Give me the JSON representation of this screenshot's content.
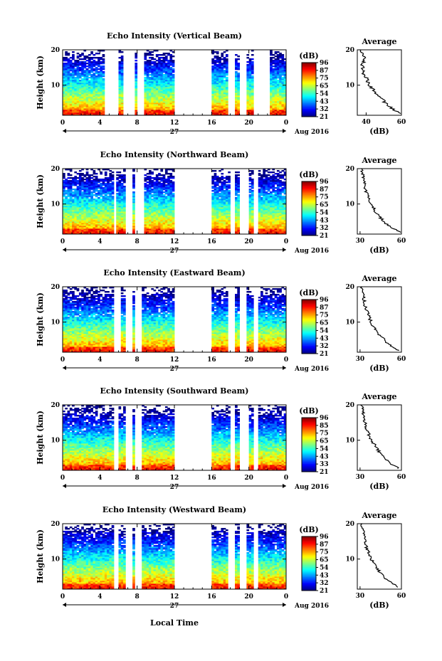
{
  "page": {
    "xlabel": "Local Time",
    "date_label": "Aug 2016",
    "day_label": "27",
    "colorbar_unit": "(dB)",
    "avg_title": "Average",
    "avg_xlabel": "(dB)"
  },
  "chart_data": [
    {
      "type": "heatmap",
      "title": "Echo Intensity (Vertical Beam)",
      "ylabel": "Height (km)",
      "xlabel": "Local Time",
      "x_ticks": [
        "0",
        "4",
        "8",
        "12",
        "16",
        "20",
        "0"
      ],
      "xlim": [
        0,
        24
      ],
      "y_ticks": [
        "10",
        "20"
      ],
      "ylim": [
        1.5,
        20
      ],
      "colorbar_ticks": [
        "96",
        "87",
        "75",
        "65",
        "54",
        "43",
        "32",
        "21"
      ],
      "colorbar_range": [
        21,
        96
      ],
      "data_gaps_hours": [
        [
          4.5,
          6.1
        ],
        [
          6.6,
          7.7
        ],
        [
          8.0,
          8.7
        ],
        [
          12,
          16.1
        ],
        [
          17.8,
          18.4
        ],
        [
          19.1,
          19.8
        ],
        [
          20.4,
          22.3
        ]
      ],
      "average": {
        "title": "Average",
        "xlabel": "(dB)",
        "x_ticks": [
          "40",
          "60"
        ],
        "xlim": [
          35,
          60
        ],
        "y_ticks": [
          "10",
          "20"
        ],
        "ylim": [
          1.5,
          20
        ],
        "height_km": [
          2,
          4,
          6,
          8,
          10,
          12,
          14,
          16,
          18,
          20
        ],
        "values_db": [
          59,
          53,
          49,
          45,
          42,
          40,
          38,
          38,
          39,
          36
        ]
      }
    },
    {
      "type": "heatmap",
      "title": "Echo Intensity (Northward Beam)",
      "ylabel": "Height (km)",
      "xlabel": "Local Time",
      "x_ticks": [
        "0",
        "4",
        "8",
        "12",
        "16",
        "20",
        "0"
      ],
      "xlim": [
        0,
        24
      ],
      "y_ticks": [
        "10",
        "20"
      ],
      "ylim": [
        1.5,
        20
      ],
      "colorbar_ticks": [
        "96",
        "87",
        "75",
        "65",
        "54",
        "43",
        "32",
        "21"
      ],
      "colorbar_range": [
        21,
        96
      ],
      "data_gaps_hours": [
        [
          5.5,
          5.8
        ],
        [
          6.7,
          7.6
        ],
        [
          7.8,
          8.7
        ],
        [
          12,
          16.1
        ],
        [
          17.9,
          18.5
        ],
        [
          19.0,
          19.9
        ],
        [
          20.4,
          21.0
        ]
      ],
      "average": {
        "title": "Average",
        "xlabel": "(dB)",
        "x_ticks": [
          "30",
          "60"
        ],
        "xlim": [
          28,
          60
        ],
        "y_ticks": [
          "10",
          "20"
        ],
        "ylim": [
          1.5,
          20
        ],
        "height_km": [
          2,
          4,
          6,
          8,
          10,
          12,
          14,
          16,
          18,
          20
        ],
        "values_db": [
          59,
          50,
          45,
          41,
          38,
          36,
          34,
          33,
          32,
          31
        ]
      }
    },
    {
      "type": "heatmap",
      "title": "Echo Intensity (Eastward Beam)",
      "ylabel": "Height (km)",
      "xlabel": "Local Time",
      "x_ticks": [
        "0",
        "4",
        "8",
        "12",
        "16",
        "20",
        "0"
      ],
      "xlim": [
        0,
        24
      ],
      "y_ticks": [
        "10",
        "20"
      ],
      "ylim": [
        1.5,
        20
      ],
      "colorbar_ticks": [
        "96",
        "87",
        "75",
        "65",
        "54",
        "43",
        "32",
        "21"
      ],
      "colorbar_range": [
        21,
        96
      ],
      "data_gaps_hours": [
        [
          5.5,
          6.2
        ],
        [
          6.7,
          7.5
        ],
        [
          7.8,
          8.6
        ],
        [
          12,
          16.1
        ],
        [
          17.8,
          18.6
        ],
        [
          19.0,
          19.7
        ],
        [
          20.4,
          21.0
        ]
      ],
      "average": {
        "title": "Average",
        "xlabel": "(dB)",
        "x_ticks": [
          "30",
          "60"
        ],
        "xlim": [
          28,
          60
        ],
        "y_ticks": [
          "10",
          "20"
        ],
        "ylim": [
          1.5,
          20
        ],
        "height_km": [
          2,
          4,
          6,
          8,
          10,
          12,
          14,
          16,
          18,
          20
        ],
        "values_db": [
          58,
          50,
          45,
          41,
          38,
          36,
          34,
          33,
          32,
          31
        ]
      }
    },
    {
      "type": "heatmap",
      "title": "Echo Intensity (Southward Beam)",
      "ylabel": "Height (km)",
      "xlabel": "Local Time",
      "x_ticks": [
        "0",
        "4",
        "8",
        "12",
        "16",
        "20",
        "0"
      ],
      "xlim": [
        0,
        24
      ],
      "y_ticks": [
        "10",
        "20"
      ],
      "ylim": [
        1.5,
        20
      ],
      "colorbar_ticks": [
        "96",
        "85",
        "75",
        "65",
        "54",
        "43",
        "33",
        "21"
      ],
      "colorbar_range": [
        21,
        96
      ],
      "data_gaps_hours": [
        [
          5.5,
          6.1
        ],
        [
          6.7,
          7.5
        ],
        [
          7.8,
          8.6
        ],
        [
          12,
          16.1
        ],
        [
          17.9,
          18.5
        ],
        [
          19.0,
          19.9
        ],
        [
          20.4,
          21.0
        ]
      ],
      "average": {
        "title": "Average",
        "xlabel": "(dB)",
        "x_ticks": [
          "30",
          "60"
        ],
        "xlim": [
          28,
          60
        ],
        "y_ticks": [
          "10",
          "20"
        ],
        "ylim": [
          1.5,
          20
        ],
        "height_km": [
          2,
          4,
          6,
          8,
          10,
          12,
          14,
          16,
          18,
          20
        ],
        "values_db": [
          58,
          50,
          45,
          42,
          38,
          36,
          34,
          33,
          32,
          31
        ]
      }
    },
    {
      "type": "heatmap",
      "title": "Echo Intensity (Westward Beam)",
      "ylabel": "Height (km)",
      "xlabel": "Local Time",
      "x_ticks": [
        "0",
        "4",
        "8",
        "12",
        "16",
        "20",
        "0"
      ],
      "xlim": [
        0,
        24
      ],
      "y_ticks": [
        "10",
        "20"
      ],
      "ylim": [
        1.5,
        20
      ],
      "colorbar_ticks": [
        "96",
        "87",
        "75",
        "65",
        "54",
        "43",
        "32",
        "21"
      ],
      "colorbar_range": [
        21,
        96
      ],
      "data_gaps_hours": [
        [
          5.5,
          6.1
        ],
        [
          6.7,
          7.5
        ],
        [
          7.8,
          8.6
        ],
        [
          12,
          16.1
        ],
        [
          17.8,
          18.6
        ],
        [
          19.0,
          19.8
        ],
        [
          20.4,
          21.0
        ]
      ],
      "average": {
        "title": "Average",
        "xlabel": "(dB)",
        "x_ticks": [
          "30",
          "60"
        ],
        "xlim": [
          28,
          60
        ],
        "y_ticks": [
          "10",
          "20"
        ],
        "ylim": [
          1.5,
          20
        ],
        "height_km": [
          2,
          4,
          6,
          8,
          10,
          12,
          14,
          16,
          18,
          20
        ],
        "values_db": [
          58,
          50,
          45,
          41,
          38,
          36,
          34,
          33,
          33,
          31
        ]
      }
    }
  ]
}
